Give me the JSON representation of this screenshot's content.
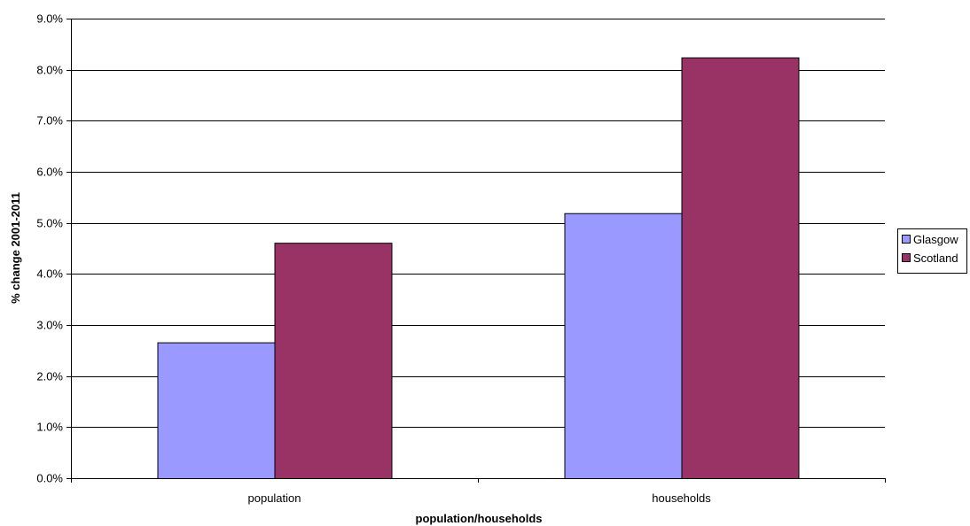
{
  "chart_data": {
    "type": "bar",
    "title": "",
    "xlabel": "population/households",
    "ylabel": "% change 2001-2011",
    "categories": [
      "population",
      "households"
    ],
    "series": [
      {
        "name": "Glasgow",
        "values": [
          2.66,
          5.19
        ],
        "color": "#9999ff"
      },
      {
        "name": "Scotland",
        "values": [
          4.61,
          8.24
        ],
        "color": "#993366"
      }
    ],
    "ylim": [
      0,
      9
    ],
    "yticks": [
      0,
      1,
      2,
      3,
      4,
      5,
      6,
      7,
      8,
      9
    ],
    "ytick_labels": [
      "0.0%",
      "1.0%",
      "2.0%",
      "3.0%",
      "4.0%",
      "5.0%",
      "6.0%",
      "7.0%",
      "8.0%",
      "9.0%"
    ],
    "grid": true,
    "legend_position": "right"
  }
}
